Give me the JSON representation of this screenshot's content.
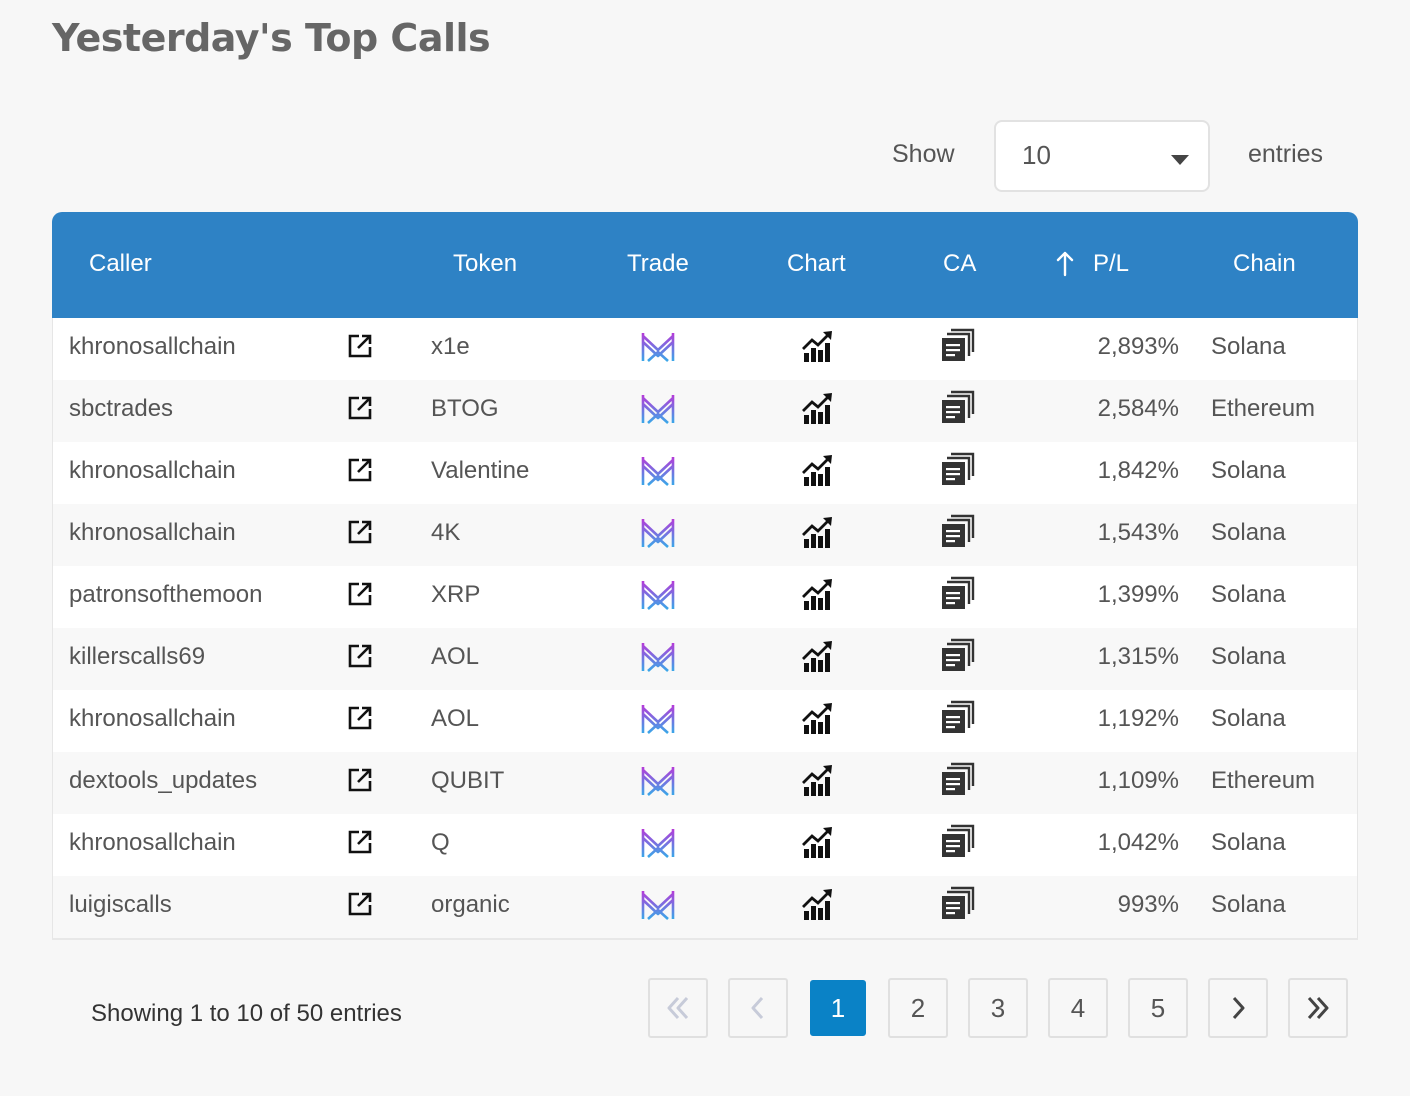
{
  "title": "Yesterday's Top Calls",
  "length_control": {
    "show_label": "Show",
    "selected": "10",
    "entries_label": "entries"
  },
  "table": {
    "headers": {
      "caller": "Caller",
      "token": "Token",
      "trade": "Trade",
      "chart": "Chart",
      "ca": "CA",
      "pl": "P/L",
      "chain": "Chain"
    },
    "sort_indicator": "arrow-up-icon",
    "rows": [
      {
        "caller": "khronosallchain",
        "token": "x1e",
        "pl": "2,893%",
        "chain": "Solana"
      },
      {
        "caller": "sbctrades",
        "token": "BTOG",
        "pl": "2,584%",
        "chain": "Ethereum"
      },
      {
        "caller": "khronosallchain",
        "token": "Valentine",
        "pl": "1,842%",
        "chain": "Solana"
      },
      {
        "caller": "khronosallchain",
        "token": "4K",
        "pl": "1,543%",
        "chain": "Solana"
      },
      {
        "caller": "patronsofthemoon",
        "token": "XRP",
        "pl": "1,399%",
        "chain": "Solana"
      },
      {
        "caller": "killerscalls69",
        "token": "AOL",
        "pl": "1,315%",
        "chain": "Solana"
      },
      {
        "caller": "khronosallchain",
        "token": "AOL",
        "pl": "1,192%",
        "chain": "Solana"
      },
      {
        "caller": "dextools_updates",
        "token": "QUBIT",
        "pl": "1,109%",
        "chain": "Ethereum"
      },
      {
        "caller": "khronosallchain",
        "token": "Q",
        "pl": "1,042%",
        "chain": "Solana"
      },
      {
        "caller": "luigiscalls",
        "token": "organic",
        "pl": "993%",
        "chain": "Solana"
      }
    ],
    "row_icons": {
      "link": "external-link-icon",
      "trade": "trade-logo-icon",
      "chart": "chart-icon",
      "ca": "copy-icon"
    }
  },
  "info": "Showing 1 to 10 of 50 entries",
  "pagination": {
    "pages": [
      "1",
      "2",
      "3",
      "4",
      "5"
    ],
    "active": "1",
    "first_icon": "double-chevron-left-icon",
    "prev_icon": "chevron-left-icon",
    "next_icon": "chevron-right-icon",
    "last_icon": "double-chevron-right-icon"
  },
  "colors": {
    "header_bg": "#2e82c5",
    "active_page": "#0a82c6",
    "trade_logo_top": "#b63ad8",
    "trade_logo_bottom": "#3aa7e8"
  }
}
